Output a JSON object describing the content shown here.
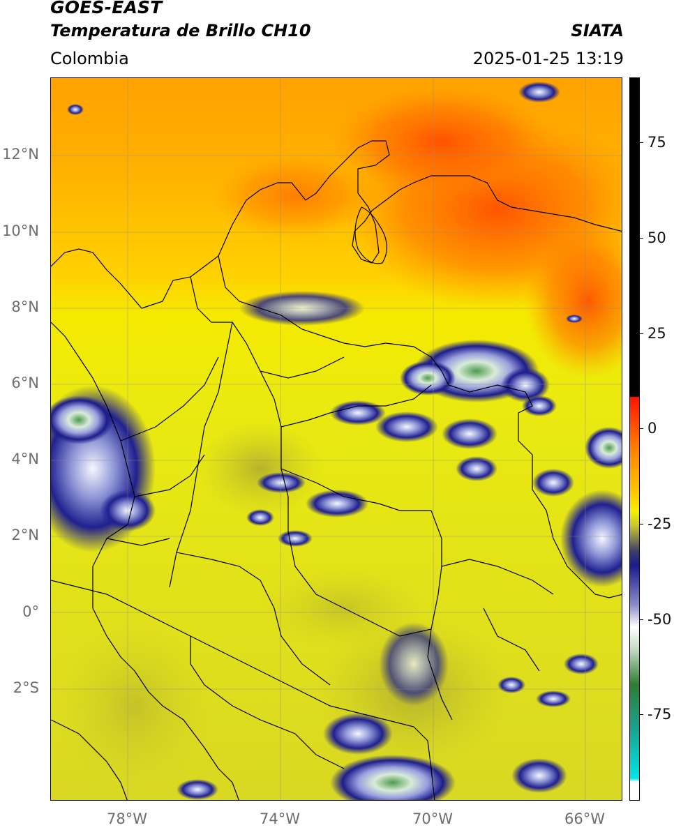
{
  "header": {
    "satellite": "GOES-EAST",
    "product": "Temperatura de Brillo CH10",
    "region": "Colombia",
    "organization": "SIATA",
    "datetime": "2025-01-25 13:19"
  },
  "map": {
    "projection": "PlateCarree",
    "extent": {
      "lon_min": -80.0,
      "lon_max": -65.0,
      "lat_min": -5.0,
      "lat_max": 14.0
    },
    "lat_labels": [
      "12°N",
      "10°N",
      "8°N",
      "6°N",
      "4°N",
      "2°N",
      "0°",
      "2°S"
    ],
    "lat_values": [
      12,
      10,
      8,
      6,
      4,
      2,
      0,
      -2
    ],
    "lon_labels": [
      "78°W",
      "74°W",
      "70°W",
      "66°W"
    ],
    "lon_values": [
      -78,
      -74,
      -70,
      -66
    ],
    "gridlines": true,
    "field_description": "brightness temperature; warm orange over Caribbean north, yellow over land, cold blue/white/green convective cells"
  },
  "colorbar": {
    "labels": [
      "75",
      "50",
      "25",
      "0",
      "-25",
      "-50",
      "-75"
    ],
    "values": [
      75,
      50,
      25,
      0,
      -25,
      -50,
      -75
    ],
    "range": [
      -95,
      90
    ],
    "colors": {
      "black_top": "#000000",
      "red": "#ff1f00",
      "orange": "#ff9500",
      "yellow": "#f5f000",
      "olive": "#9c9c33",
      "gray": "#555555",
      "navy": "#1a1a8c",
      "white": "#ffffff",
      "green": "#2e7d32",
      "teal": "#1aa28f",
      "cyan": "#00e5e5"
    }
  }
}
